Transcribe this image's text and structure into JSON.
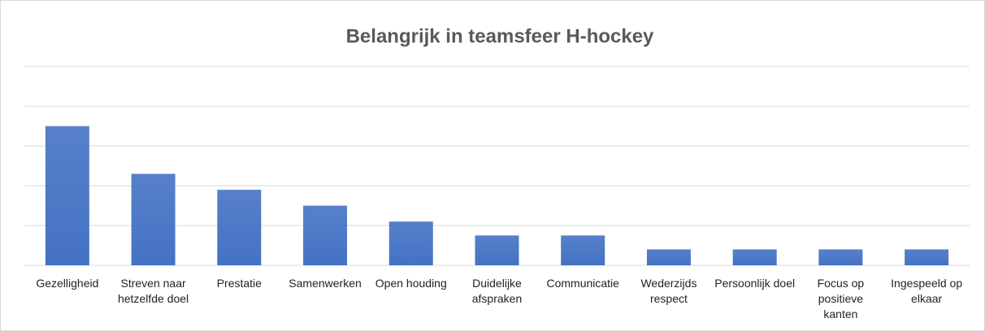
{
  "chart_data": {
    "type": "bar",
    "title": "Belangrijk in teamsfeer H-hockey",
    "categories": [
      "Gezelligheid",
      "Streven naar hetzelfde doel",
      "Prestatie",
      "Samenwerken",
      "Open houding",
      "Duidelijke afspraken",
      "Communicatie",
      "Wederzijds respect",
      "Persoonlijk doel",
      "Focus op positieve kanten",
      "Ingespeeld op elkaar"
    ],
    "values": [
      3.5,
      2.3,
      1.9,
      1.5,
      1.1,
      0.75,
      0.75,
      0.4,
      0.4,
      0.4,
      0.4
    ],
    "color": "#4472c4",
    "ylim": [
      0,
      5
    ],
    "yticks": [
      0,
      1,
      2,
      3,
      4,
      5
    ],
    "grid": true
  }
}
